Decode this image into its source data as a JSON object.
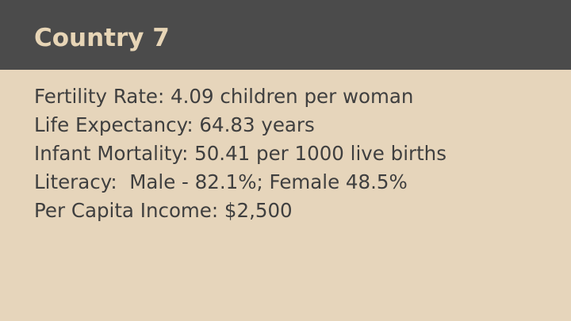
{
  "slide": {
    "title": "Country 7",
    "lines": [
      "Fertility Rate: 4.09 children per woman",
      "Life Expectancy: 64.83 years",
      "Infant Mortality: 50.41 per 1000 live births",
      "Literacy:  Male - 82.1%; Female 48.5%",
      "Per Capita Income: $2,500"
    ]
  },
  "colors": {
    "background": "#e6d5bb",
    "title_bar": "#4b4b4b",
    "title_text": "#e7d5b6",
    "body_text": "#3f3f3f"
  }
}
